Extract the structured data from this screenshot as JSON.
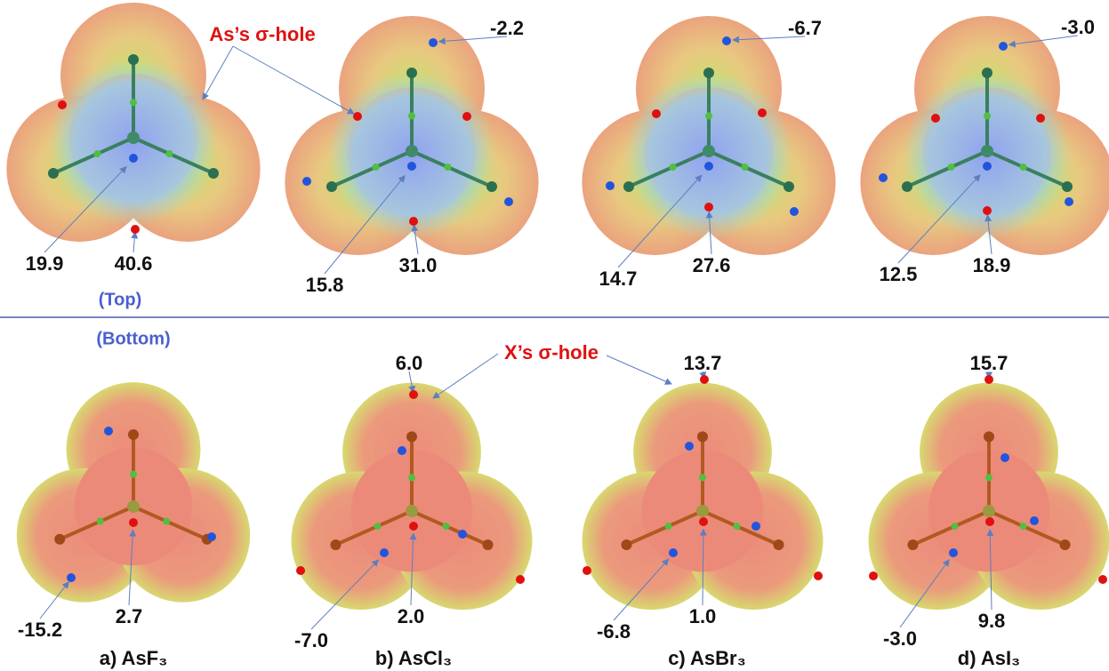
{
  "header": {
    "as_sigma_hole": "As’s σ-hole",
    "x_sigma_hole": "X’s σ-hole",
    "top_label": "(Top)",
    "bottom_label": "(Bottom)"
  },
  "panels": [
    {
      "caption": "a) AsF₃",
      "top_values": [
        "19.9",
        "40.6"
      ],
      "bottom_values": [
        "-15.2",
        "2.7"
      ]
    },
    {
      "caption": "b) AsCl₃",
      "top_values": [
        "-2.2",
        "15.8",
        "31.0"
      ],
      "bottom_values": [
        "6.0",
        "-7.0",
        "2.0"
      ]
    },
    {
      "caption": "c) AsBr₃",
      "top_values": [
        "-6.7",
        "14.7",
        "27.6"
      ],
      "bottom_values": [
        "13.7",
        "-6.8",
        "1.0"
      ]
    },
    {
      "caption": "d) AsI₃",
      "top_values": [
        "-3.0",
        "12.5",
        "18.9"
      ],
      "bottom_values": [
        "15.7",
        "-3.0",
        "9.8"
      ]
    }
  ]
}
